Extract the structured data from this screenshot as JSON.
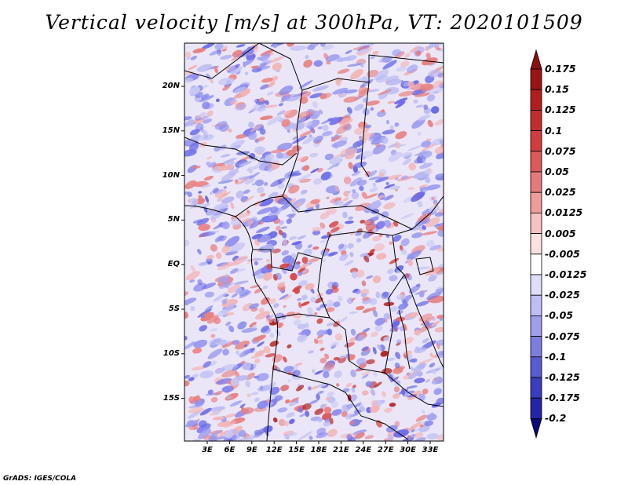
{
  "title": "Vertical velocity [m/s] at 300hPa, VT: 2020101509",
  "lat_labels": [
    "20N",
    "15N",
    "10N",
    "5N",
    "EQ",
    "5S",
    "10S",
    "15S"
  ],
  "lon_labels": [
    "3E",
    "6E",
    "9E",
    "12E",
    "15E",
    "18E",
    "21E",
    "24E",
    "27E",
    "30E",
    "33E"
  ],
  "colorbar": {
    "labels": [
      "0.175",
      "0.15",
      "0.125",
      "0.1",
      "0.075",
      "0.05",
      "0.025",
      "0.0125",
      "0.005",
      "-0.005",
      "-0.0125",
      "-0.025",
      "-0.05",
      "-0.075",
      "-0.1",
      "-0.125",
      "-0.175",
      "-0.2"
    ],
    "colors": [
      "#9b1414",
      "#b21e1e",
      "#c42d2d",
      "#d23c3c",
      "#dd5a5a",
      "#e67a7a",
      "#ef9c9c",
      "#f7c2c2",
      "#fce1e1",
      "#ffffff",
      "#dedefa",
      "#bebef4",
      "#9e9eea",
      "#7d7de0",
      "#5a5ad2",
      "#3c3cc0",
      "#2424a8",
      "#101090"
    ],
    "top_arrow_color": "#8c0f0f",
    "bottom_arrow_color": "#0a0a7a"
  },
  "field": {
    "background": "#eae6f8",
    "blue_tones": [
      "#6a6ae8",
      "#8484ec",
      "#a0a0f0",
      "#b8b8f2",
      "#c8c8f4"
    ],
    "red_tones": [
      "#f3b4b4",
      "#e88080",
      "#d64848",
      "#b52222"
    ]
  },
  "credit": "GrADS: IGES/COLA"
}
